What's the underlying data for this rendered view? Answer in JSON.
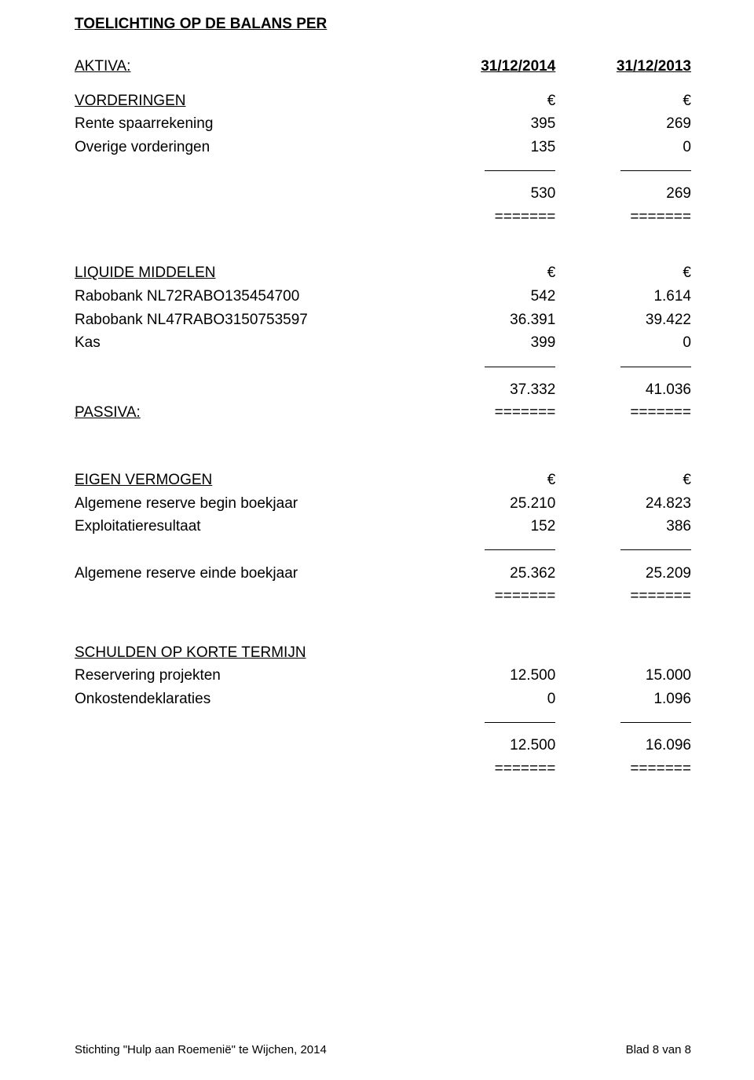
{
  "title": "TOELICHTING OP DE BALANS PER",
  "aktiva": {
    "label": "AKTIVA:",
    "col1": "31/12/2014",
    "col2": "31/12/2013"
  },
  "euro": "€",
  "vorderingen": {
    "heading": "VORDERINGEN",
    "rows": [
      {
        "label": "Rente spaarrekening",
        "v1": "395",
        "v2": "269"
      },
      {
        "label": "Overige vorderingen",
        "v1": "135",
        "v2": "0"
      }
    ],
    "total": {
      "v1": "530",
      "v2": "269"
    },
    "eq": "======="
  },
  "liquide": {
    "heading": "LIQUIDE MIDDELEN",
    "rows": [
      {
        "label": "Rabobank NL72RABO135454700",
        "v1": "542",
        "v2": "1.614"
      },
      {
        "label": "Rabobank NL47RABO3150753597",
        "v1": "36.391",
        "v2": "39.422"
      },
      {
        "label": "Kas",
        "v1": "399",
        "v2": "0"
      }
    ],
    "total": {
      "v1": "37.332",
      "v2": "41.036"
    },
    "eq": "======="
  },
  "passiva": {
    "label": "PASSIVA:"
  },
  "eigen": {
    "heading": "EIGEN VERMOGEN",
    "rows": [
      {
        "label": "Algemene reserve begin boekjaar",
        "v1": "25.210",
        "v2": "24.823"
      },
      {
        "label": "Exploitatieresultaat",
        "v1": "152",
        "v2": "386"
      }
    ],
    "total": {
      "label": "Algemene reserve einde boekjaar",
      "v1": "25.362",
      "v2": "25.209"
    },
    "eq": "======="
  },
  "schulden": {
    "heading": "SCHULDEN OP KORTE TERMIJN",
    "rows": [
      {
        "label": "Reservering projekten",
        "v1": "12.500",
        "v2": "15.000"
      },
      {
        "label": "Onkostendeklaraties",
        "v1": "0",
        "v2": "1.096"
      }
    ],
    "total": {
      "v1": "12.500",
      "v2": "16.096"
    },
    "eq": "======="
  },
  "footer": {
    "left": "Stichting \"Hulp aan Roemenië\" te Wijchen, 2014",
    "right": "Blad 8 van 8"
  }
}
